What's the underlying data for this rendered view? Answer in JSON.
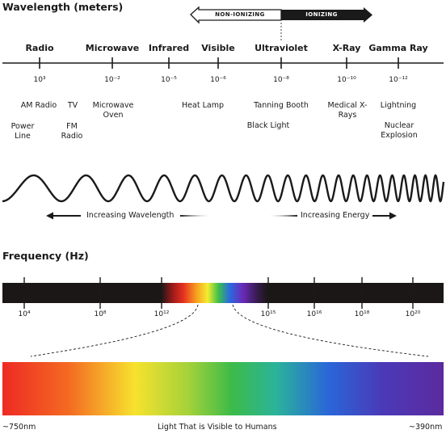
{
  "wavelength_title": "Wavelength (meters)",
  "banner": {
    "left": "NON-IONIZING",
    "right": "IONIZING"
  },
  "bands": [
    {
      "name": "Radio",
      "power": "10³",
      "examples": [
        "AM Radio",
        "TV",
        "Power Line",
        "FM Radio"
      ]
    },
    {
      "name": "Microwave",
      "power": "10⁻²",
      "examples": [
        "Microwave Oven"
      ]
    },
    {
      "name": "Infrared",
      "power": "10⁻⁵",
      "examples": []
    },
    {
      "name": "Visible",
      "power": "10⁻⁶",
      "examples": [
        "Heat Lamp"
      ]
    },
    {
      "name": "Ultraviolet",
      "power": "10⁻⁸",
      "examples": [
        "Tanning Booth",
        "Black Light"
      ]
    },
    {
      "name": "X-Ray",
      "power": "10⁻¹⁰",
      "examples": [
        "Medical X-Rays"
      ]
    },
    {
      "name": "Gamma Ray",
      "power": "10⁻¹²",
      "examples": [
        "Lightning",
        "Nuclear Explosion"
      ]
    }
  ],
  "wave_labels": {
    "left": "Increasing Wavelength",
    "right": "Increasing Energy"
  },
  "frequency_title": "Frequency (Hz)",
  "frequency_ticks": [
    "10⁴",
    "10⁸",
    "10¹²",
    "10¹⁵",
    "10¹⁶",
    "10¹⁸",
    "10²⁰"
  ],
  "visible_spectrum": {
    "left": "~750nm",
    "center": "Light That is Visible to Humans",
    "right": "~390nm"
  },
  "colors": {
    "ink": "#1a1a1a",
    "bar": "#1c1717"
  }
}
